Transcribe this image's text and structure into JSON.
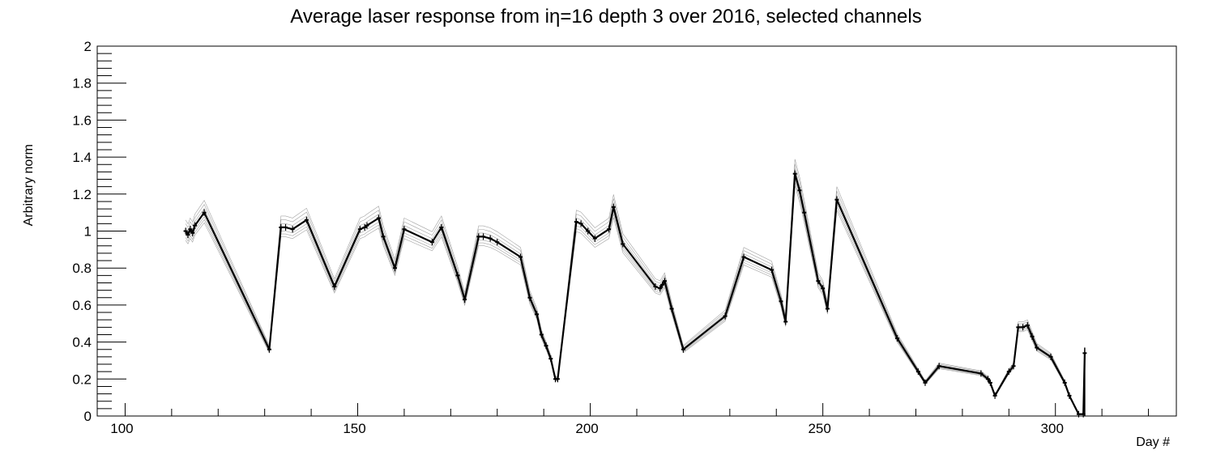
{
  "chart_data": {
    "type": "line",
    "title": "Average laser response from iη=16 depth 3 over 2016, selected channels",
    "xlabel": "Day #",
    "ylabel": "Arbitrary norm",
    "xlim": [
      94,
      326
    ],
    "ylim": [
      0,
      2
    ],
    "x_ticks": [
      "100",
      "150",
      "200",
      "250",
      "300"
    ],
    "y_ticks": [
      "0",
      "0.2",
      "0.4",
      "0.6",
      "0.8",
      "1",
      "1.2",
      "1.4",
      "1.6",
      "1.8",
      "2"
    ],
    "grid": false,
    "legend": "none",
    "colors": {
      "line": "#000000",
      "channel_lines": "#555555",
      "background": "#ffffff"
    },
    "series": [
      {
        "x": [
          113,
          113.5,
          114,
          114.5,
          115,
          117,
          131,
          133.5,
          134.5,
          136,
          139,
          145,
          150.5,
          151.5,
          152,
          154.5,
          155.5,
          158,
          160,
          166,
          168,
          171.5,
          173,
          176,
          177,
          178.5,
          180,
          185,
          187,
          188.5,
          189.5,
          190.5,
          191.5,
          192.5,
          193,
          197,
          198,
          199.5,
          201,
          204,
          205,
          207,
          214,
          215,
          215.5,
          216,
          217.5,
          220,
          229,
          233,
          239,
          241,
          242,
          244,
          245,
          246,
          249,
          250,
          251,
          253,
          266,
          270.5,
          272,
          275,
          284,
          285.5,
          286,
          287,
          290,
          291,
          292,
          293,
          294,
          295,
          296,
          299,
          302,
          303,
          305,
          306,
          306.3
        ],
        "values": [
          1.0,
          0.98,
          1.01,
          0.99,
          1.03,
          1.1,
          0.36,
          1.02,
          1.02,
          1.01,
          1.06,
          0.7,
          1.01,
          1.02,
          1.03,
          1.07,
          0.97,
          0.8,
          1.01,
          0.94,
          1.02,
          0.76,
          0.63,
          0.97,
          0.97,
          0.96,
          0.94,
          0.86,
          0.64,
          0.55,
          0.44,
          0.38,
          0.31,
          0.2,
          0.2,
          1.05,
          1.04,
          1.0,
          0.96,
          1.01,
          1.13,
          0.93,
          0.7,
          0.69,
          0.71,
          0.73,
          0.58,
          0.36,
          0.54,
          0.86,
          0.79,
          0.62,
          0.51,
          1.31,
          1.22,
          1.1,
          0.73,
          0.69,
          0.58,
          1.17,
          0.42,
          0.24,
          0.18,
          0.27,
          0.23,
          0.2,
          0.18,
          0.11,
          0.24,
          0.27,
          0.48,
          0.48,
          0.49,
          0.43,
          0.37,
          0.32,
          0.18,
          0.11,
          0.01,
          0.01,
          0.34
        ]
      }
    ]
  }
}
